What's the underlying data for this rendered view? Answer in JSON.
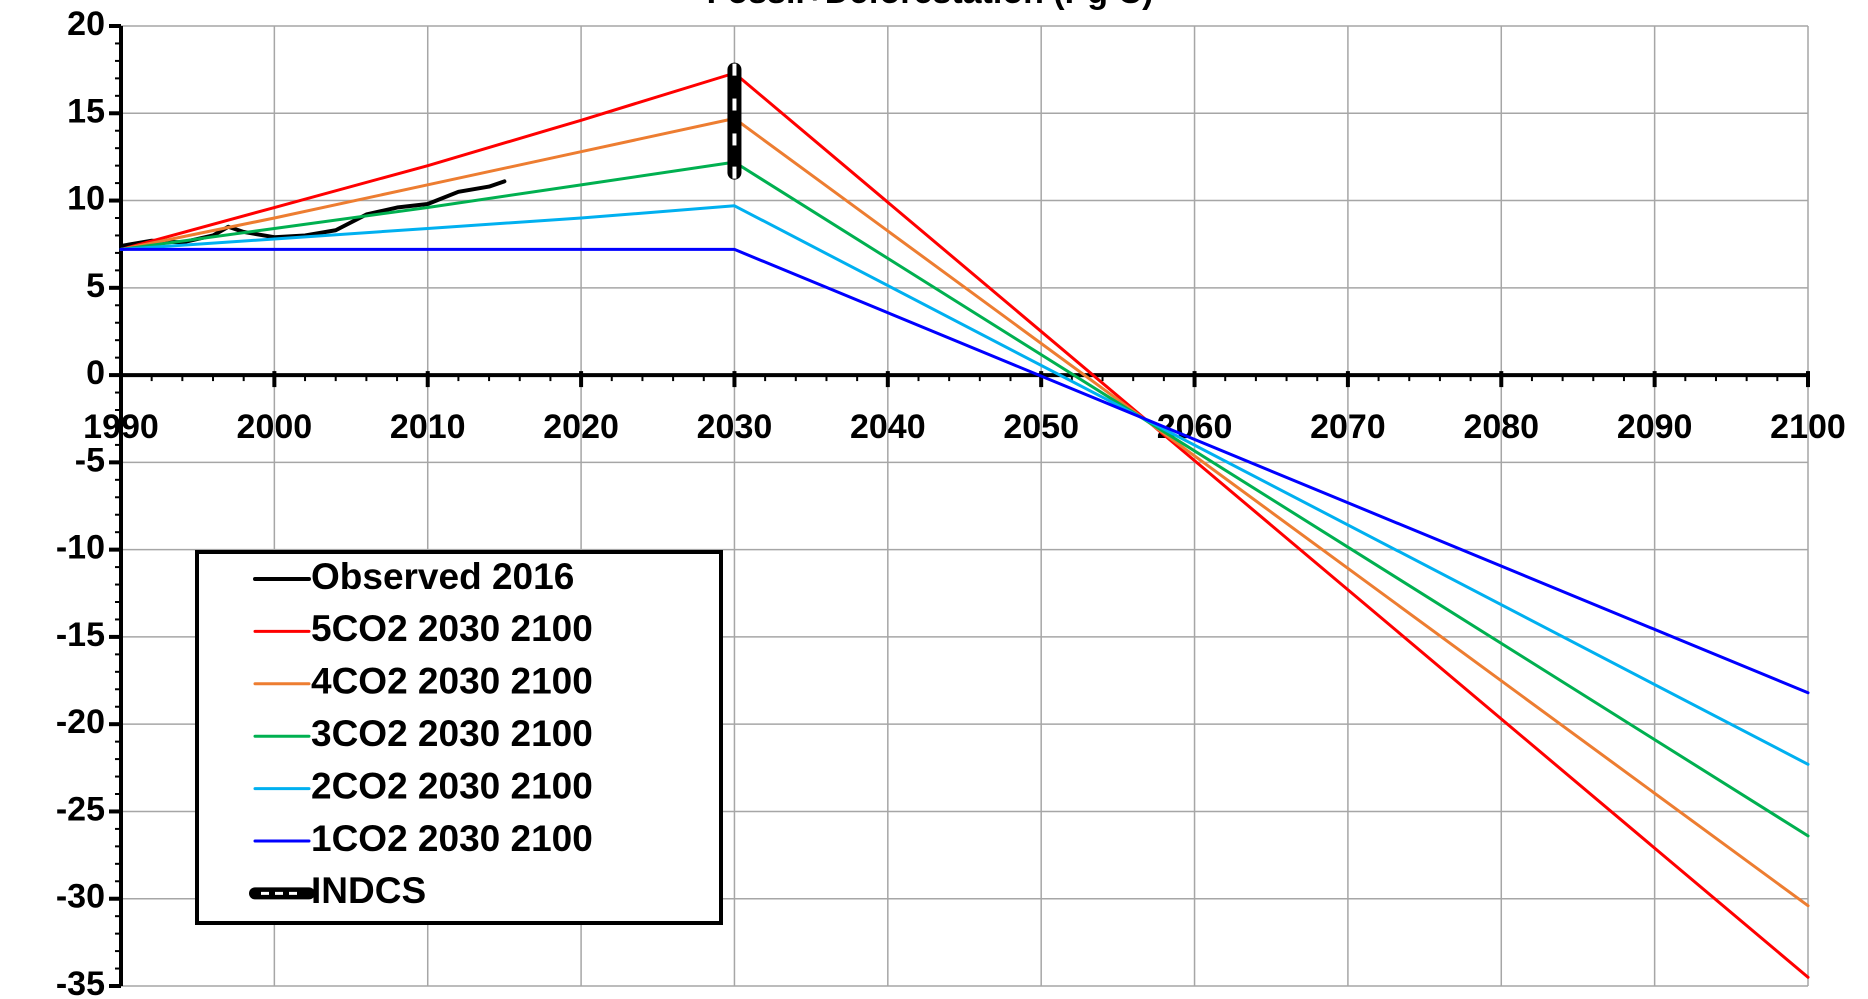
{
  "chart_data": {
    "type": "line",
    "title": "Fossil+Deforestation (Pg C)",
    "xlim": [
      1990,
      2100
    ],
    "xticks": [
      1990,
      2000,
      2010,
      2020,
      2030,
      2040,
      2050,
      2060,
      2070,
      2080,
      2090,
      2100
    ],
    "ylim": [
      -35,
      20
    ],
    "yticks": [
      -35,
      -30,
      -25,
      -20,
      -15,
      -10,
      -5,
      0,
      5,
      10,
      15,
      20
    ],
    "grid": true,
    "series": [
      {
        "name": "Observed 2016",
        "color": "#000000",
        "line_width": 4,
        "x": [
          1990,
          1992,
          1994,
          1996,
          1997,
          1998,
          2000,
          2002,
          2004,
          2006,
          2008,
          2010,
          2012,
          2014,
          2015
        ],
        "values": [
          7.4,
          7.7,
          7.6,
          8.0,
          8.5,
          8.2,
          7.9,
          8.0,
          8.3,
          9.2,
          9.6,
          9.8,
          10.5,
          10.8,
          11.1
        ]
      },
      {
        "name": "5CO2 2030 2100",
        "color": "#ff0000",
        "line_width": 3,
        "x": [
          1990,
          2000,
          2010,
          2020,
          2030,
          2100
        ],
        "values": [
          7.2,
          9.6,
          12.0,
          14.6,
          17.3,
          -34.5
        ]
      },
      {
        "name": "4CO2 2030 2100",
        "color": "#ed7d31",
        "line_width": 3,
        "x": [
          1990,
          2000,
          2010,
          2020,
          2030,
          2100
        ],
        "values": [
          7.2,
          9.0,
          10.9,
          12.8,
          14.7,
          -30.4
        ]
      },
      {
        "name": "3CO2 2030 2100",
        "color": "#00b050",
        "line_width": 3,
        "x": [
          1990,
          2000,
          2010,
          2020,
          2030,
          2100
        ],
        "values": [
          7.2,
          8.4,
          9.6,
          10.9,
          12.2,
          -26.4
        ]
      },
      {
        "name": "2CO2 2030 2100",
        "color": "#00b0f0",
        "line_width": 3,
        "x": [
          1990,
          2000,
          2010,
          2020,
          2030,
          2100
        ],
        "values": [
          7.2,
          7.8,
          8.4,
          9.0,
          9.7,
          -22.3
        ]
      },
      {
        "name": "1CO2 2030 2100",
        "color": "#0000ff",
        "line_width": 3,
        "x": [
          1990,
          2030,
          2100
        ],
        "values": [
          7.2,
          7.2,
          -18.2
        ]
      },
      {
        "name": "INDCS",
        "color": "#000000",
        "line_width": 14,
        "x": [
          2030,
          2030,
          2030,
          2030
        ],
        "values": [
          11.6,
          13.5,
          15.5,
          17.5
        ]
      }
    ]
  }
}
